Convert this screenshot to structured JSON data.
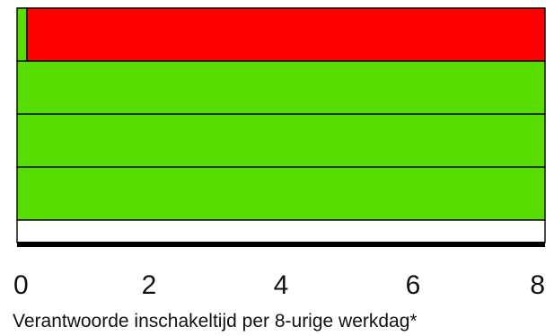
{
  "chart_data": {
    "type": "bar",
    "orientation": "horizontal",
    "stacked": true,
    "xlabel": "Verantwoorde inschakeltijd per 8-urige werkdag*",
    "xlim": [
      0,
      8
    ],
    "xticks": [
      "0",
      "2",
      "4",
      "6",
      "8"
    ],
    "grid": false,
    "rows": [
      {
        "segments": [
          {
            "value": 0.15,
            "color": "#57dd00"
          },
          {
            "value": 7.85,
            "color": "#ff0000"
          }
        ]
      },
      {
        "segments": [
          {
            "value": 8,
            "color": "#57dd00"
          }
        ]
      },
      {
        "segments": [
          {
            "value": 8,
            "color": "#57dd00"
          }
        ]
      },
      {
        "segments": [
          {
            "value": 8,
            "color": "#57dd00"
          }
        ]
      },
      {
        "segments": [
          {
            "value": 8,
            "color": "#ffffff"
          }
        ]
      }
    ]
  }
}
